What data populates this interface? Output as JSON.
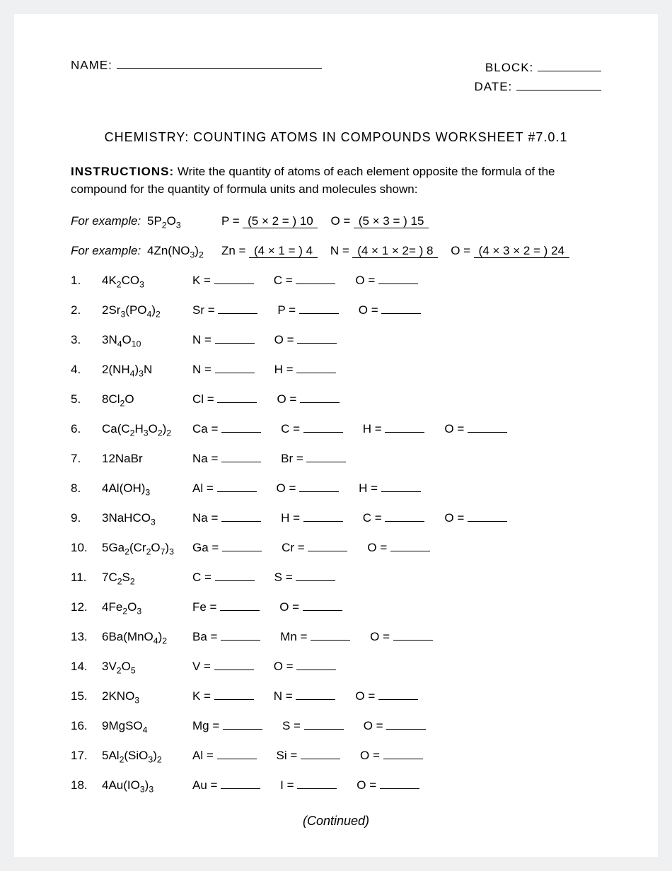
{
  "header": {
    "name_label": "NAME:",
    "block_label": "BLOCK:",
    "date_label": "DATE:"
  },
  "title": "CHEMISTRY: COUNTING ATOMS IN COMPOUNDS WORKSHEET #7.0.1",
  "instructions_label": "INSTRUCTIONS:",
  "instructions_text": "Write the quantity of atoms of each element opposite the formula of the compound for the quantity of formula units and molecules shown:",
  "example_label": "For example:",
  "examples": [
    {
      "formula_html": "5P<sub>2</sub>O<sub>3</sub>",
      "answers": [
        {
          "el": "P",
          "calc": "(5 × 2 = ) 10"
        },
        {
          "el": "O",
          "calc": "(5 × 3 = ) 15"
        }
      ]
    },
    {
      "formula_html": "4Zn(NO<sub>3</sub>)<sub>2</sub>",
      "answers": [
        {
          "el": "Zn",
          "calc": "(4 × 1 = ) 4"
        },
        {
          "el": "N",
          "calc": "(4 × 1 × 2= ) 8"
        },
        {
          "el": "O",
          "calc": "(4 × 3 × 2 = ) 24"
        }
      ]
    }
  ],
  "questions": [
    {
      "n": "1.",
      "formula_html": "4K<sub>2</sub>CO<sub>3</sub>",
      "elements": [
        "K",
        "C",
        "O"
      ]
    },
    {
      "n": "2.",
      "formula_html": "2Sr<sub>3</sub>(PO<sub>4</sub>)<sub>2</sub>",
      "elements": [
        "Sr",
        "P",
        "O"
      ]
    },
    {
      "n": "3.",
      "formula_html": "3N<sub>4</sub>O<sub>10</sub>",
      "elements": [
        "N",
        "O"
      ]
    },
    {
      "n": "4.",
      "formula_html": "2(NH<sub>4</sub>)<sub>3</sub>N",
      "elements": [
        "N",
        "H"
      ]
    },
    {
      "n": "5.",
      "formula_html": "8Cl<sub>2</sub>O",
      "elements": [
        "Cl",
        "O"
      ]
    },
    {
      "n": "6.",
      "formula_html": "Ca(C<sub>2</sub>H<sub>3</sub>O<sub>2</sub>)<sub>2</sub>",
      "elements": [
        "Ca",
        "C",
        "H",
        "O"
      ]
    },
    {
      "n": "7.",
      "formula_html": "12NaBr",
      "elements": [
        "Na",
        "Br"
      ]
    },
    {
      "n": "8.",
      "formula_html": "4Al(OH)<sub>3</sub>",
      "elements": [
        "Al",
        "O",
        "H"
      ]
    },
    {
      "n": "9.",
      "formula_html": "3NaHCO<sub>3</sub>",
      "elements": [
        "Na",
        "H",
        "C",
        "O"
      ]
    },
    {
      "n": "10.",
      "formula_html": "5Ga<sub>2</sub>(Cr<sub>2</sub>O<sub>7</sub>)<sub>3</sub>",
      "elements": [
        "Ga",
        "Cr",
        "O"
      ]
    },
    {
      "n": "11.",
      "formula_html": "7C<sub>2</sub>S<sub>2</sub>",
      "elements": [
        "C",
        "S"
      ]
    },
    {
      "n": "12.",
      "formula_html": "4Fe<sub>2</sub>O<sub>3</sub>",
      "elements": [
        "Fe",
        "O"
      ]
    },
    {
      "n": "13.",
      "formula_html": "6Ba(MnO<sub>4</sub>)<sub>2</sub>",
      "elements": [
        "Ba",
        "Mn",
        "O"
      ]
    },
    {
      "n": "14.",
      "formula_html": "3V<sub>2</sub>O<sub>5</sub>",
      "elements": [
        "V",
        "O"
      ]
    },
    {
      "n": "15.",
      "formula_html": "2KNO<sub>3</sub>",
      "elements": [
        "K",
        "N",
        "O"
      ]
    },
    {
      "n": "16.",
      "formula_html": "9MgSO<sub>4</sub>",
      "elements": [
        "Mg",
        "S",
        "O"
      ]
    },
    {
      "n": "17.",
      "formula_html": "5Al<sub>2</sub>(SiO<sub>3</sub>)<sub>2</sub>",
      "elements": [
        "Al",
        "Si",
        "O"
      ]
    },
    {
      "n": "18.",
      "formula_html": "4Au(IO<sub>3</sub>)<sub>3</sub>",
      "elements": [
        "Au",
        "I",
        "O"
      ]
    }
  ],
  "continued": "(Continued)",
  "style": {
    "page_bg": "#ffffff",
    "body_bg": "#eef0f2",
    "text_color": "#000000",
    "font_family": "Arial",
    "base_fontsize": 17,
    "title_fontsize": 18,
    "underline_color": "#000000",
    "row_gap": 22,
    "name_line_width": 290,
    "block_line_width": 90,
    "date_line_width": 120,
    "blank_width": 56
  }
}
